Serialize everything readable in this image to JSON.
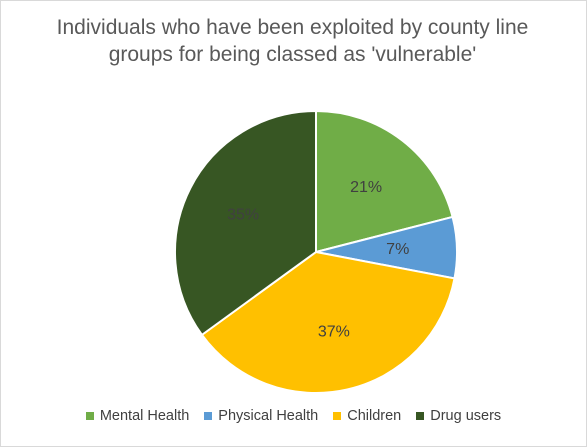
{
  "chart_data": {
    "type": "pie",
    "title": "Individuals who have been exploited by county line groups for being classed as 'vulnerable'",
    "categories": [
      "Mental Health",
      "Physical Health",
      "Children",
      "Drug users"
    ],
    "values": [
      21,
      7,
      37,
      35
    ],
    "data_labels": [
      "21%",
      "7%",
      "37%",
      "35%"
    ],
    "colors": [
      "#70ad47",
      "#5b9bd5",
      "#ffc000",
      "#375623"
    ],
    "label_colors": [
      "#404040",
      "#404040",
      "#404040",
      "#404040"
    ],
    "legend_position": "bottom"
  }
}
